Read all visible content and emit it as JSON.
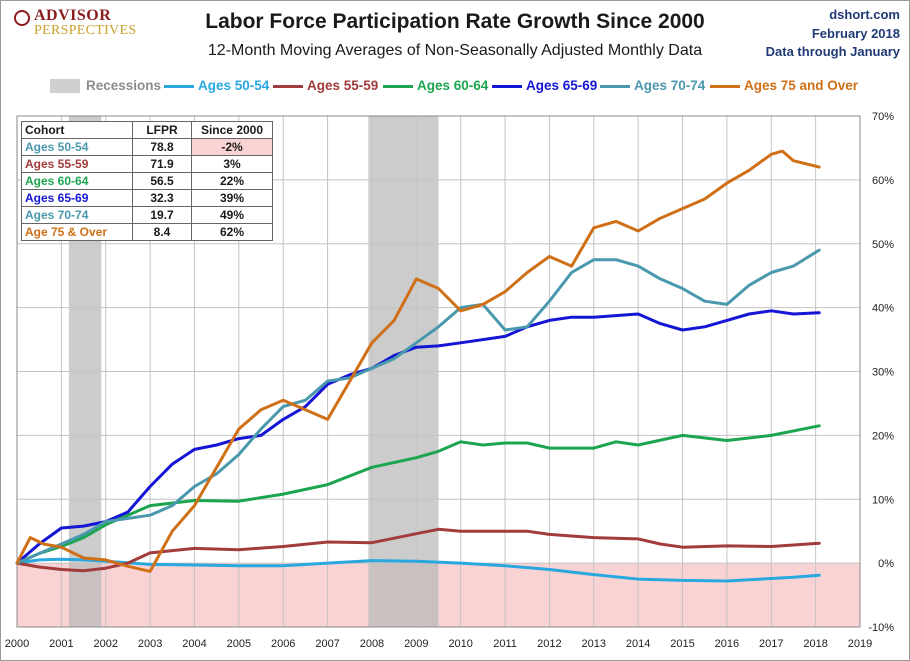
{
  "header": {
    "logo_line1": "ADVISOR",
    "logo_line2": "PERSPECTIVES",
    "title": "Labor Force Participation Rate Growth Since 2000",
    "subtitle": "12-Month Moving Averages of Non-Seasonally Adjusted Monthly Data",
    "source_site": "dshort.com",
    "source_date": "February 2018",
    "source_note": "Data through January"
  },
  "legend": [
    {
      "label": "Recessions",
      "color": "#b9b9b9",
      "kind": "band"
    },
    {
      "label": "Ages 50-54",
      "color": "#29a8e0",
      "kind": "line"
    },
    {
      "label": "Ages 55-59",
      "color": "#a23b3b",
      "kind": "line"
    },
    {
      "label": "Ages 60-64",
      "color": "#1ba54f",
      "kind": "line"
    },
    {
      "label": "Ages 65-69",
      "color": "#1515d6",
      "kind": "line"
    },
    {
      "label": "Ages 70-74",
      "color": "#4a98ad",
      "kind": "line"
    },
    {
      "label": "Ages 75 and Over",
      "color": "#cf6f16",
      "kind": "line"
    }
  ],
  "table": {
    "headers": [
      "Cohort",
      "LFPR",
      "Since 2000"
    ],
    "rows": [
      {
        "cohort": "Ages 50-54",
        "lfpr": "78.8",
        "since": "-2%",
        "color": "#4a98ad",
        "highlight": true
      },
      {
        "cohort": "Ages 55-59",
        "lfpr": "71.9",
        "since": "3%",
        "color": "#a23b3b",
        "highlight": false
      },
      {
        "cohort": "Ages 60-64",
        "lfpr": "56.5",
        "since": "22%",
        "color": "#1ba54f",
        "highlight": false
      },
      {
        "cohort": "Ages 65-69",
        "lfpr": "32.3",
        "since": "39%",
        "color": "#1515d6",
        "highlight": false
      },
      {
        "cohort": "Ages 70-74",
        "lfpr": "19.7",
        "since": "49%",
        "color": "#4a98ad",
        "highlight": false
      },
      {
        "cohort": "Age 75 & Over",
        "lfpr": "8.4",
        "since": "62%",
        "color": "#cf6f16",
        "highlight": false
      }
    ]
  },
  "chart_data": {
    "type": "line",
    "title": "Labor Force Participation Rate Growth Since 2000",
    "subtitle": "12-Month Moving Averages of Non-Seasonally Adjusted Monthly Data",
    "xlim": [
      2000,
      2019
    ],
    "ylim": [
      -10,
      70
    ],
    "x_ticks": [
      "2000",
      "2001",
      "2002",
      "2003",
      "2004",
      "2005",
      "2006",
      "2007",
      "2008",
      "2009",
      "2010",
      "2011",
      "2012",
      "2013",
      "2014",
      "2015",
      "2016",
      "2017",
      "2018",
      "2019"
    ],
    "y_ticks": [
      "-10%",
      "0%",
      "10%",
      "20%",
      "30%",
      "40%",
      "50%",
      "60%",
      "70%"
    ],
    "y_axis_side": "right",
    "grid": true,
    "negative_shading_color": "#f9d3d3",
    "recessions": [
      [
        2001.17,
        2001.9
      ],
      [
        2007.92,
        2009.5
      ]
    ],
    "series": [
      {
        "name": "Ages 50-54",
        "color": "#29a8e0",
        "points": [
          [
            2000,
            0
          ],
          [
            2000.5,
            0.5
          ],
          [
            2001,
            0.6
          ],
          [
            2001.5,
            0.5
          ],
          [
            2002,
            0.3
          ],
          [
            2003,
            -0.2
          ],
          [
            2004,
            -0.3
          ],
          [
            2005,
            -0.4
          ],
          [
            2006,
            -0.4
          ],
          [
            2007,
            0
          ],
          [
            2008,
            0.4
          ],
          [
            2009,
            0.3
          ],
          [
            2010,
            0
          ],
          [
            2011,
            -0.4
          ],
          [
            2012,
            -1
          ],
          [
            2013,
            -1.8
          ],
          [
            2014,
            -2.5
          ],
          [
            2015,
            -2.7
          ],
          [
            2016,
            -2.8
          ],
          [
            2017,
            -2.4
          ],
          [
            2017.5,
            -2.2
          ],
          [
            2018.08,
            -1.9
          ]
        ]
      },
      {
        "name": "Ages 55-59",
        "color": "#a23b3b",
        "points": [
          [
            2000,
            0
          ],
          [
            2000.5,
            -0.6
          ],
          [
            2001,
            -1
          ],
          [
            2001.5,
            -1.2
          ],
          [
            2002,
            -0.8
          ],
          [
            2002.5,
            0
          ],
          [
            2003,
            1.6
          ],
          [
            2004,
            2.3
          ],
          [
            2005,
            2.1
          ],
          [
            2006,
            2.6
          ],
          [
            2007,
            3.3
          ],
          [
            2008,
            3.2
          ],
          [
            2009,
            4.6
          ],
          [
            2009.5,
            5.3
          ],
          [
            2010,
            5
          ],
          [
            2011,
            5
          ],
          [
            2011.5,
            5
          ],
          [
            2012,
            4.5
          ],
          [
            2013,
            4
          ],
          [
            2014,
            3.8
          ],
          [
            2014.5,
            3
          ],
          [
            2015,
            2.5
          ],
          [
            2016,
            2.7
          ],
          [
            2017,
            2.6
          ],
          [
            2018.08,
            3.1
          ]
        ]
      },
      {
        "name": "Ages 60-64",
        "color": "#1ba54f",
        "points": [
          [
            2000,
            0
          ],
          [
            2000.5,
            1.5
          ],
          [
            2001,
            2.6
          ],
          [
            2001.5,
            4
          ],
          [
            2002,
            6
          ],
          [
            2002.5,
            7.5
          ],
          [
            2003,
            9
          ],
          [
            2004,
            9.8
          ],
          [
            2005,
            9.7
          ],
          [
            2006,
            10.8
          ],
          [
            2007,
            12.3
          ],
          [
            2008,
            15
          ],
          [
            2009,
            16.5
          ],
          [
            2009.5,
            17.5
          ],
          [
            2010,
            19
          ],
          [
            2010.5,
            18.5
          ],
          [
            2011,
            18.8
          ],
          [
            2011.5,
            18.8
          ],
          [
            2012,
            18
          ],
          [
            2013,
            18
          ],
          [
            2013.5,
            19
          ],
          [
            2014,
            18.5
          ],
          [
            2015,
            20
          ],
          [
            2016,
            19.2
          ],
          [
            2017,
            20
          ],
          [
            2018.08,
            21.5
          ]
        ]
      },
      {
        "name": "Ages 65-69",
        "color": "#1515d6",
        "points": [
          [
            2000,
            0
          ],
          [
            2000.5,
            3
          ],
          [
            2001,
            5.5
          ],
          [
            2001.5,
            5.8
          ],
          [
            2002,
            6.5
          ],
          [
            2002.5,
            8
          ],
          [
            2003,
            12
          ],
          [
            2003.5,
            15.5
          ],
          [
            2004,
            17.8
          ],
          [
            2004.5,
            18.5
          ],
          [
            2005,
            19.5
          ],
          [
            2005.5,
            20
          ],
          [
            2006,
            22.5
          ],
          [
            2006.5,
            24.5
          ],
          [
            2007,
            28
          ],
          [
            2007.5,
            29.5
          ],
          [
            2008,
            30.5
          ],
          [
            2008.5,
            32.5
          ],
          [
            2009,
            33.8
          ],
          [
            2009.5,
            34
          ],
          [
            2010,
            34.5
          ],
          [
            2011,
            35.5
          ],
          [
            2011.5,
            37
          ],
          [
            2012,
            38
          ],
          [
            2012.5,
            38.5
          ],
          [
            2013,
            38.5
          ],
          [
            2014,
            39
          ],
          [
            2014.5,
            37.5
          ],
          [
            2015,
            36.5
          ],
          [
            2015.5,
            37
          ],
          [
            2016,
            38
          ],
          [
            2016.5,
            39
          ],
          [
            2017,
            39.5
          ],
          [
            2017.5,
            39
          ],
          [
            2018.08,
            39.2
          ]
        ]
      },
      {
        "name": "Ages 70-74",
        "color": "#4a98ad",
        "points": [
          [
            2000,
            0
          ],
          [
            2000.5,
            1.5
          ],
          [
            2001,
            3
          ],
          [
            2001.5,
            4.5
          ],
          [
            2002,
            6.5
          ],
          [
            2002.5,
            7
          ],
          [
            2003,
            7.5
          ],
          [
            2003.5,
            9
          ],
          [
            2004,
            12
          ],
          [
            2004.5,
            14
          ],
          [
            2005,
            17
          ],
          [
            2005.5,
            21
          ],
          [
            2006,
            24.5
          ],
          [
            2006.5,
            25.5
          ],
          [
            2007,
            28.5
          ],
          [
            2007.5,
            29
          ],
          [
            2008,
            30.5
          ],
          [
            2008.5,
            32
          ],
          [
            2009,
            34.5
          ],
          [
            2009.5,
            37
          ],
          [
            2010,
            40
          ],
          [
            2010.5,
            40.5
          ],
          [
            2011,
            36.5
          ],
          [
            2011.5,
            37
          ],
          [
            2012,
            41
          ],
          [
            2012.5,
            45.5
          ],
          [
            2013,
            47.5
          ],
          [
            2013.5,
            47.5
          ],
          [
            2014,
            46.5
          ],
          [
            2014.5,
            44.5
          ],
          [
            2015,
            43
          ],
          [
            2015.5,
            41
          ],
          [
            2016,
            40.5
          ],
          [
            2016.5,
            43.5
          ],
          [
            2017,
            45.5
          ],
          [
            2017.5,
            46.5
          ],
          [
            2018.08,
            49
          ]
        ]
      },
      {
        "name": "Ages 75 and Over",
        "color": "#cf6f16",
        "points": [
          [
            2000,
            0
          ],
          [
            2000.3,
            4
          ],
          [
            2000.6,
            3
          ],
          [
            2001,
            2.5
          ],
          [
            2001.5,
            0.8
          ],
          [
            2002,
            0.5
          ],
          [
            2002.5,
            -0.5
          ],
          [
            2003,
            -1.3
          ],
          [
            2003.5,
            5
          ],
          [
            2004,
            9
          ],
          [
            2004.5,
            15
          ],
          [
            2005,
            21
          ],
          [
            2005.5,
            24
          ],
          [
            2006,
            25.5
          ],
          [
            2006.5,
            24
          ],
          [
            2007,
            22.5
          ],
          [
            2007.5,
            28.5
          ],
          [
            2008,
            34.5
          ],
          [
            2008.5,
            38
          ],
          [
            2009,
            44.5
          ],
          [
            2009.5,
            43
          ],
          [
            2010,
            39.5
          ],
          [
            2010.5,
            40.5
          ],
          [
            2011,
            42.5
          ],
          [
            2011.5,
            45.5
          ],
          [
            2012,
            48
          ],
          [
            2012.5,
            46.5
          ],
          [
            2013,
            52.5
          ],
          [
            2013.5,
            53.5
          ],
          [
            2014,
            52
          ],
          [
            2014.5,
            54
          ],
          [
            2015,
            55.5
          ],
          [
            2015.5,
            57
          ],
          [
            2016,
            59.5
          ],
          [
            2016.5,
            61.5
          ],
          [
            2017,
            64
          ],
          [
            2017.25,
            64.5
          ],
          [
            2017.5,
            63
          ],
          [
            2018.08,
            62
          ]
        ]
      }
    ]
  }
}
